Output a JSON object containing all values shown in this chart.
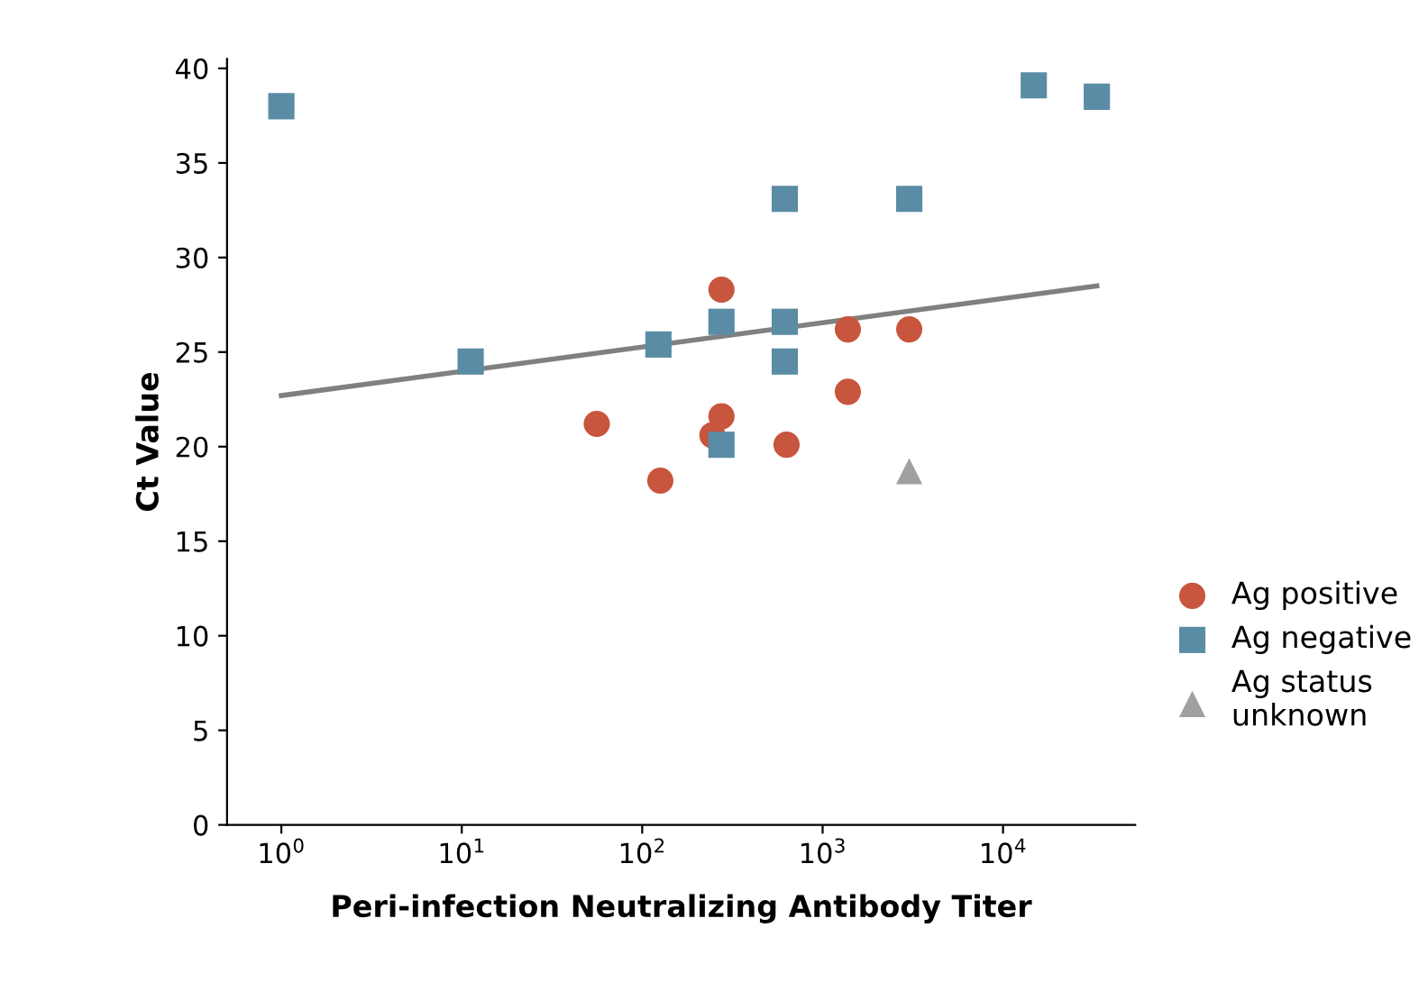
{
  "chart_data": {
    "type": "scatter",
    "xlabel": "Peri-infection Neutralizing Antibody Titer",
    "ylabel": "Ct Value",
    "log": "x",
    "xlim": [
      0.5,
      54000
    ],
    "ylim": [
      0,
      40.5
    ],
    "xticks": [
      {
        "value": 1,
        "label": "10$^{0}$"
      },
      {
        "value": 10,
        "label": "10$^{1}$"
      },
      {
        "value": 100,
        "label": "10$^{2}$"
      },
      {
        "value": 1000,
        "label": "10$^{3}$"
      },
      {
        "value": 10000,
        "label": "10$^{4}$"
      }
    ],
    "yticks": [
      0,
      5,
      10,
      15,
      20,
      25,
      30,
      35,
      40
    ],
    "grid": false,
    "legend": "right",
    "series": [
      {
        "name": "Ag positive",
        "color": "#c8553d",
        "marker": "circle",
        "x": [
          56,
          126,
          275,
          245,
          275,
          631,
          1380,
          1380,
          3020
        ],
        "values": [
          21.2,
          18.2,
          28.3,
          20.6,
          21.6,
          20.1,
          26.2,
          22.9,
          26.2
        ]
      },
      {
        "name": "Ag negative",
        "color": "#5b8ca5",
        "marker": "square",
        "x": [
          1,
          11.2,
          123,
          275,
          275,
          617,
          617,
          617,
          3020,
          14800,
          33100
        ],
        "values": [
          38.0,
          24.5,
          25.4,
          26.6,
          20.1,
          33.1,
          26.6,
          24.5,
          33.1,
          39.1,
          38.5
        ]
      },
      {
        "name": "Ag status\nunknown",
        "color": "#a0a0a0",
        "marker": "triangle",
        "x": [
          3020
        ],
        "values": [
          18.7
        ]
      },
      {
        "type": "line",
        "color": "#808080",
        "marker": "none",
        "x": [
          1,
          33100
        ],
        "values": [
          22.7,
          28.5
        ]
      }
    ]
  }
}
